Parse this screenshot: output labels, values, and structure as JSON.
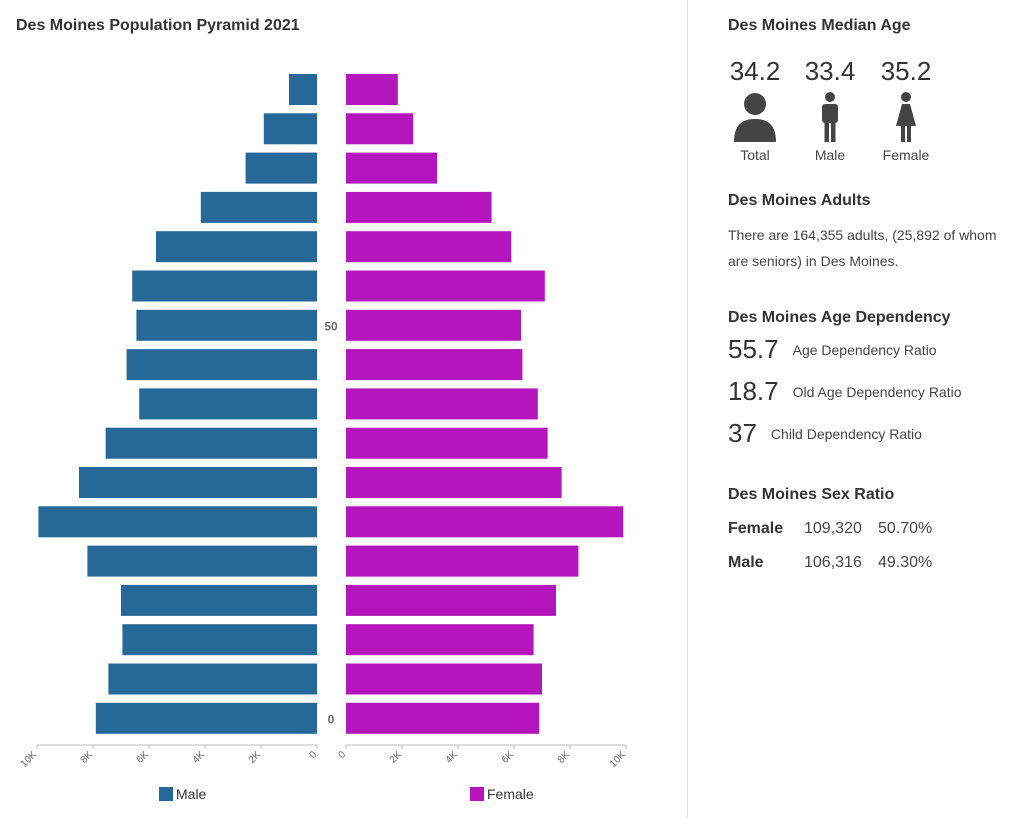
{
  "chart_data": {
    "type": "bar",
    "title": "Des Moines Population Pyramid 2021",
    "orientation": "horizontal-pyramid",
    "age_axis_ticks": [
      {
        "label": "0",
        "index": 0
      },
      {
        "label": "50",
        "index": 10
      }
    ],
    "series": [
      {
        "name": "Male",
        "color": "#266999",
        "values": [
          7900,
          7450,
          6950,
          7000,
          8200,
          9950,
          8500,
          7550,
          6350,
          6800,
          6450,
          6600,
          5750,
          4150,
          2550,
          1900,
          1000
        ]
      },
      {
        "name": "Female",
        "color": "#B515BD",
        "values": [
          6900,
          7000,
          6700,
          7500,
          8300,
          9900,
          7700,
          7200,
          6850,
          6300,
          6250,
          7100,
          5900,
          5200,
          3250,
          2400,
          1850
        ]
      }
    ],
    "xlim": [
      0,
      10000
    ],
    "x_ticks": [
      0,
      2000,
      4000,
      6000,
      8000,
      10000
    ],
    "x_tick_labels": [
      "0",
      "2K",
      "4K",
      "6K",
      "8K",
      "10K"
    ],
    "legend": [
      "Male",
      "Female"
    ],
    "legend_position": "bottom"
  },
  "median_age": {
    "title": "Des Moines Median Age",
    "items": [
      {
        "value": "34.2",
        "label": "Total",
        "icon": "person-icon"
      },
      {
        "value": "33.4",
        "label": "Male",
        "icon": "male-icon"
      },
      {
        "value": "35.2",
        "label": "Female",
        "icon": "female-icon"
      }
    ]
  },
  "adults": {
    "title": "Des Moines Adults",
    "text": "There are 164,355 adults, (25,892 of whom are seniors) in Des Moines."
  },
  "dependency": {
    "title": "Des Moines Age Dependency",
    "items": [
      {
        "value": "55.7",
        "label": "Age Dependency Ratio"
      },
      {
        "value": "18.7",
        "label": "Old Age Dependency Ratio"
      },
      {
        "value": "37",
        "label": "Child Dependency Ratio"
      }
    ]
  },
  "sex_ratio": {
    "title": "Des Moines Sex Ratio",
    "rows": [
      {
        "label": "Female",
        "count": "109,320",
        "percent": "50.70%"
      },
      {
        "label": "Male",
        "count": "106,316",
        "percent": "49.30%"
      }
    ]
  },
  "colors": {
    "male": "#266999",
    "female": "#B515BD",
    "icon": "#444444"
  }
}
